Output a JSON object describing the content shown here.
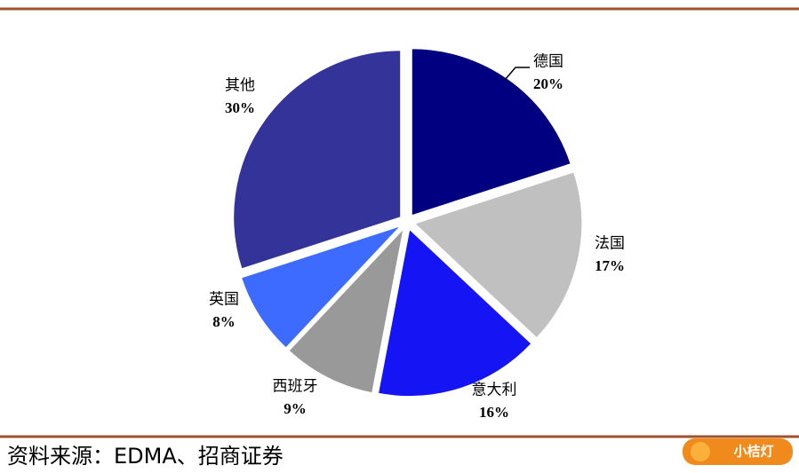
{
  "chart_data": {
    "type": "pie",
    "categories": [
      "德国",
      "法国",
      "意大利",
      "西班牙",
      "英国",
      "其他"
    ],
    "values": [
      20,
      17,
      16,
      9,
      8,
      30
    ],
    "value_labels": [
      "20%",
      "17%",
      "16%",
      "9%",
      "8%",
      "30%"
    ],
    "colors": [
      "#000080",
      "#c0c0c0",
      "#1414f5",
      "#999999",
      "#3d6bff",
      "#333399"
    ],
    "source": "资料来源：EDMA、招商证券"
  },
  "logo": "小桔灯"
}
